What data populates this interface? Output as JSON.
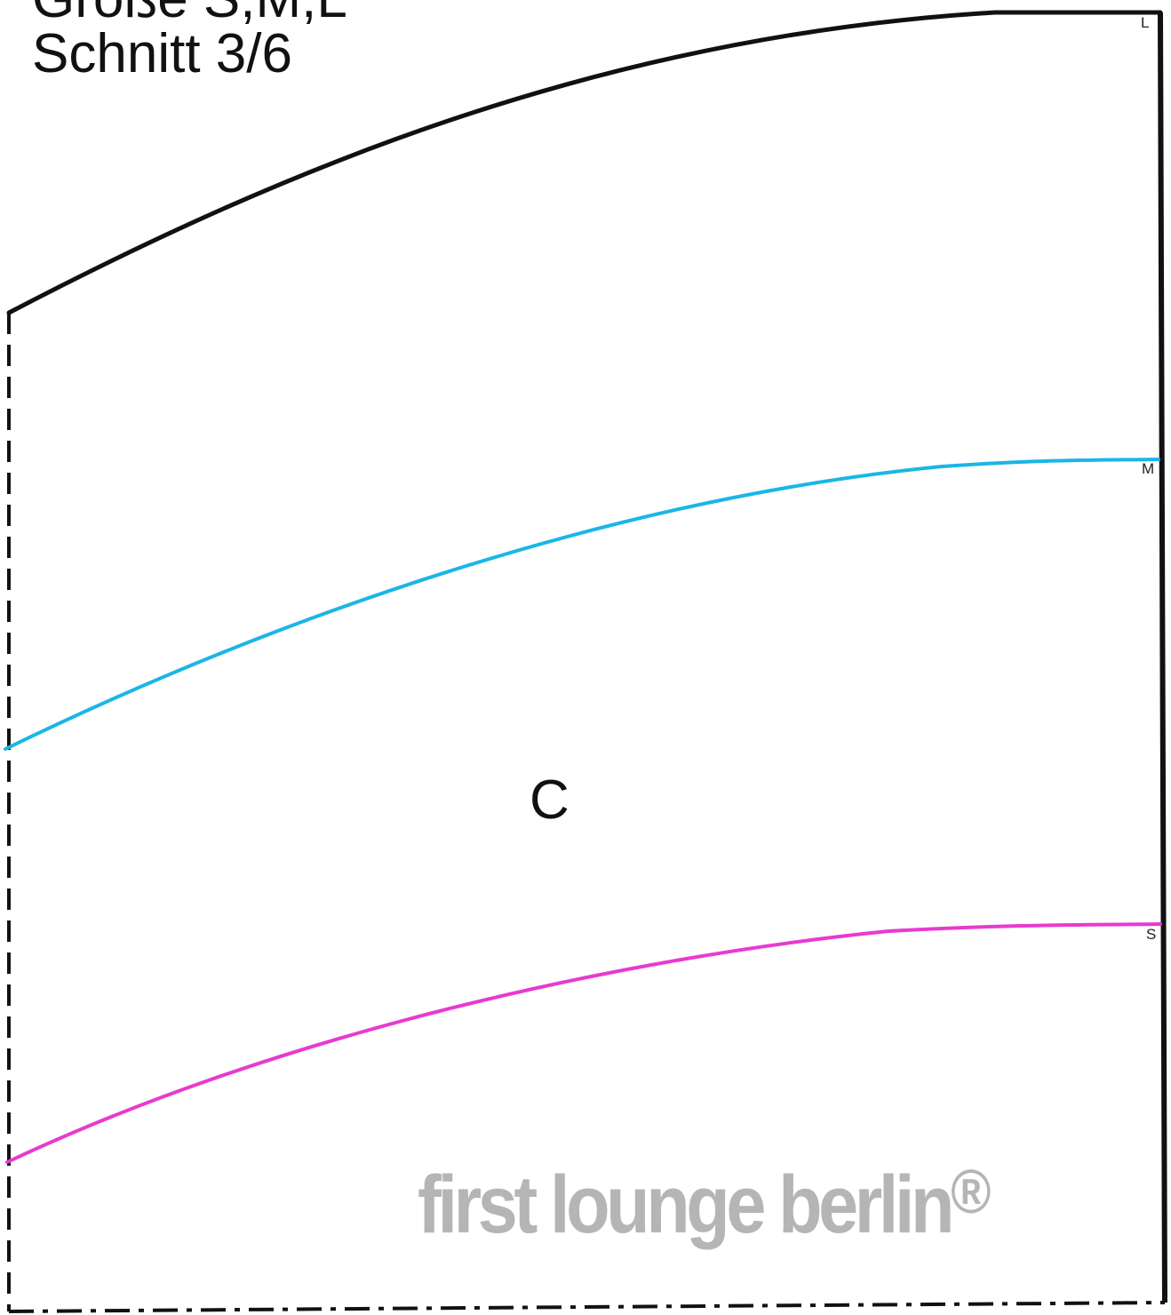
{
  "header": {
    "size_line": "Größe S,M,L",
    "pattern_line": "Schnitt 3/6"
  },
  "piece": {
    "letter": "C"
  },
  "size_markers": {
    "large": "L",
    "medium": "M",
    "small": "S"
  },
  "watermark": {
    "text": "first lounge berlin",
    "registered": "®"
  },
  "colors": {
    "outline": "#111111",
    "size_l_line": "#111111",
    "size_m_line": "#1ab6e6",
    "size_s_line": "#e83ad0",
    "watermark": "#b5b5b5"
  }
}
